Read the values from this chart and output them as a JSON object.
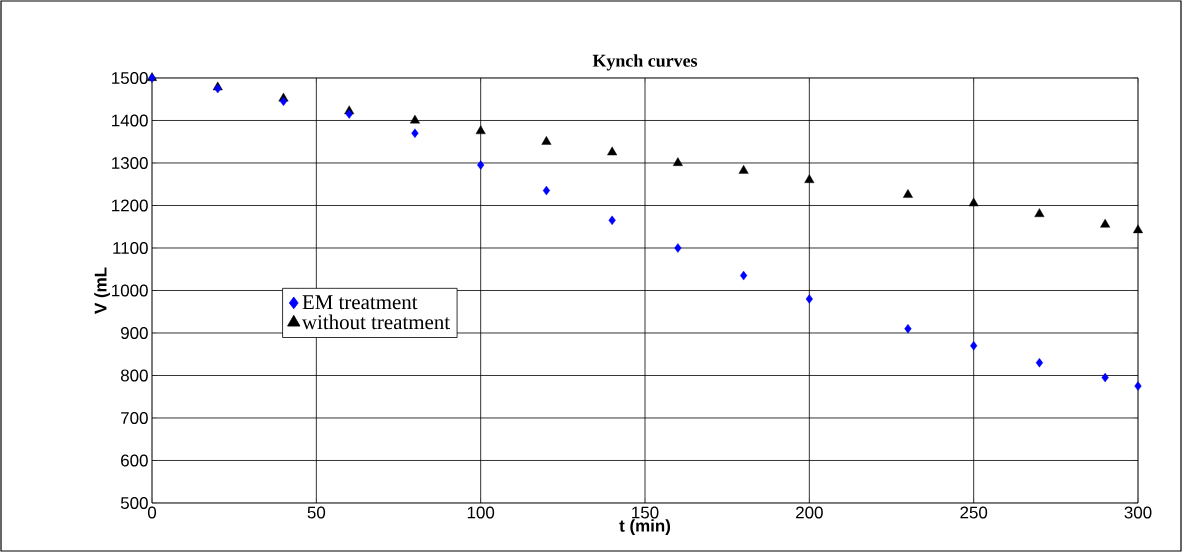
{
  "chart_data": {
    "type": "scatter",
    "title": "Kynch curves",
    "xlabel": "t (min)",
    "ylabel": "V (mL",
    "x": [
      0,
      20,
      40,
      60,
      80,
      100,
      120,
      140,
      160,
      180,
      200,
      230,
      250,
      270,
      290,
      300
    ],
    "series": [
      {
        "name": "EM treatment",
        "color": "#0000ff",
        "marker": "diamond",
        "values": [
          1500,
          1475,
          1445,
          1415,
          1370,
          1295,
          1235,
          1165,
          1100,
          1035,
          980,
          910,
          870,
          830,
          795,
          775
        ]
      },
      {
        "name": "without treatment",
        "color": "#000000",
        "marker": "triangle",
        "values": [
          1500,
          1478,
          1452,
          1422,
          1400,
          1375,
          1350,
          1325,
          1300,
          1282,
          1260,
          1225,
          1205,
          1180,
          1155,
          1142
        ]
      }
    ],
    "xlim": [
      0,
      300
    ],
    "ylim": [
      500,
      1500
    ],
    "xticks": [
      0,
      50,
      100,
      150,
      200,
      250,
      300
    ],
    "yticks": [
      500,
      600,
      700,
      800,
      900,
      1000,
      1100,
      1200,
      1300,
      1400,
      1500
    ],
    "grid": true,
    "legend": "left"
  }
}
